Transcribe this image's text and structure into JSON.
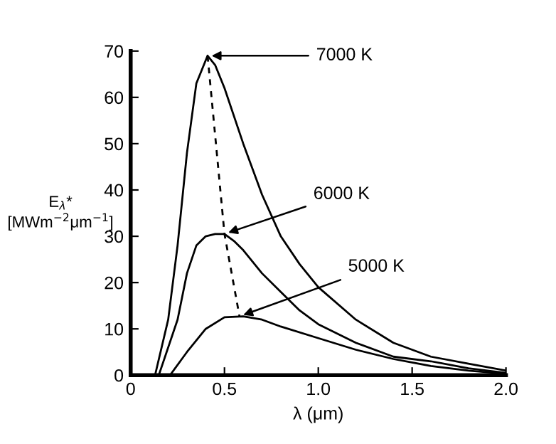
{
  "chart_data": {
    "type": "line",
    "xlabel": "λ (μm)",
    "ylabel": "E$_{λ}$*\n[MWm$^{−2}$μm$^{−1}$]",
    "xlim": [
      0,
      2.0
    ],
    "ylim": [
      0,
      70
    ],
    "xticks": [
      0,
      {
        "value": 0.5,
        "label": "0.5"
      },
      {
        "value": 1.0,
        "label": "1.0"
      },
      {
        "value": 1.5,
        "label": "1.5"
      },
      {
        "value": 2.0,
        "label": "2.0"
      }
    ],
    "yticks": [
      0,
      10,
      20,
      30,
      40,
      50,
      60,
      70
    ],
    "grid": false,
    "legend": false,
    "marker": "none",
    "series": [
      {
        "color": "#000000",
        "line_style": "solid",
        "x": [
          0.13,
          0.2,
          0.25,
          0.3,
          0.35,
          0.41,
          0.45,
          0.5,
          0.6,
          0.7,
          0.8,
          0.9,
          1.0,
          1.2,
          1.4,
          1.6,
          1.8,
          2.0
        ],
        "values": [
          0,
          12,
          28,
          48,
          63,
          69,
          67,
          62,
          50,
          39,
          30,
          24,
          19,
          12,
          7,
          4,
          2.5,
          1
        ]
      },
      {
        "color": "#000000",
        "line_style": "solid",
        "x": [
          0.15,
          0.25,
          0.3,
          0.35,
          0.4,
          0.45,
          0.5,
          0.55,
          0.6,
          0.7,
          0.8,
          0.9,
          1.0,
          1.2,
          1.4,
          1.6,
          1.8,
          2.0
        ],
        "values": [
          0,
          12,
          22,
          28,
          30,
          30.5,
          30.5,
          29,
          27,
          22,
          18,
          14,
          11,
          7,
          4,
          3,
          1.5,
          0.5
        ]
      },
      {
        "color": "#000000",
        "line_style": "solid",
        "x": [
          0.21,
          0.3,
          0.4,
          0.5,
          0.6,
          0.7,
          0.8,
          1.0,
          1.2,
          1.4,
          1.6,
          1.8,
          2.0
        ],
        "values": [
          0,
          5,
          10,
          12.5,
          12.7,
          12,
          10.5,
          8,
          5.5,
          3.5,
          2,
          1,
          0.3
        ]
      },
      {
        "color": "#000000",
        "line_style": "dashed",
        "x": [
          0.41,
          0.5,
          0.58
        ],
        "values": [
          69,
          30.5,
          12.7
        ]
      }
    ],
    "annotations": [
      {
        "text": "7000 K",
        "x": 0.41,
        "y": 69
      },
      {
        "text": "6000 K",
        "x": 0.5,
        "y": 30.5
      },
      {
        "text": "5000 K",
        "x": 0.58,
        "y": 12.7
      }
    ]
  }
}
